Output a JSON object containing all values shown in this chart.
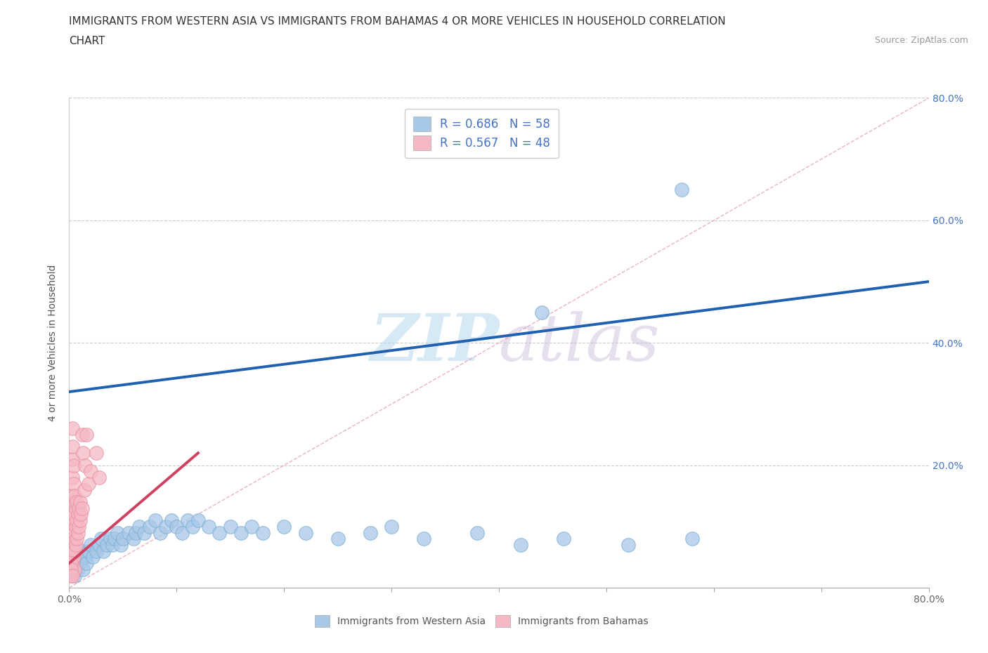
{
  "title_line1": "IMMIGRANTS FROM WESTERN ASIA VS IMMIGRANTS FROM BAHAMAS 4 OR MORE VEHICLES IN HOUSEHOLD CORRELATION",
  "title_line2": "CHART",
  "source": "Source: ZipAtlas.com",
  "ylabel": "4 or more Vehicles in Household",
  "xlim": [
    0.0,
    0.8
  ],
  "ylim": [
    0.0,
    0.8
  ],
  "xticks": [
    0.0,
    0.1,
    0.2,
    0.3,
    0.4,
    0.5,
    0.6,
    0.7,
    0.8
  ],
  "yticks": [
    0.0,
    0.2,
    0.4,
    0.6,
    0.8
  ],
  "xticklabels": [
    "0.0%",
    "",
    "",
    "",
    "",
    "",
    "",
    "",
    "80.0%"
  ],
  "yticklabels_right": [
    "",
    "20.0%",
    "40.0%",
    "60.0%",
    "80.0%"
  ],
  "blue_color": "#a8c8e8",
  "blue_edge_color": "#7aafd4",
  "pink_color": "#f5b8c4",
  "pink_edge_color": "#e890a0",
  "blue_line_color": "#2060b0",
  "pink_line_color": "#d04060",
  "diag_color": "#e0a0a8",
  "r_blue": 0.686,
  "n_blue": 58,
  "r_pink": 0.567,
  "n_pink": 48,
  "watermark": "ZIPatlas",
  "legend_label_blue": "Immigrants from Western Asia",
  "legend_label_pink": "Immigrants from Bahamas",
  "blue_line_x": [
    0.0,
    0.8
  ],
  "blue_line_y": [
    0.32,
    0.5
  ],
  "pink_line_x": [
    0.0,
    0.12
  ],
  "pink_line_y": [
    0.04,
    0.22
  ],
  "blue_scatter": [
    [
      0.005,
      0.03
    ],
    [
      0.005,
      0.02
    ],
    [
      0.007,
      0.04
    ],
    [
      0.008,
      0.03
    ],
    [
      0.01,
      0.05
    ],
    [
      0.01,
      0.04
    ],
    [
      0.012,
      0.06
    ],
    [
      0.013,
      0.03
    ],
    [
      0.015,
      0.05
    ],
    [
      0.016,
      0.04
    ],
    [
      0.018,
      0.06
    ],
    [
      0.02,
      0.07
    ],
    [
      0.022,
      0.05
    ],
    [
      0.025,
      0.06
    ],
    [
      0.028,
      0.07
    ],
    [
      0.03,
      0.08
    ],
    [
      0.032,
      0.06
    ],
    [
      0.035,
      0.07
    ],
    [
      0.038,
      0.08
    ],
    [
      0.04,
      0.07
    ],
    [
      0.042,
      0.08
    ],
    [
      0.045,
      0.09
    ],
    [
      0.048,
      0.07
    ],
    [
      0.05,
      0.08
    ],
    [
      0.055,
      0.09
    ],
    [
      0.06,
      0.08
    ],
    [
      0.062,
      0.09
    ],
    [
      0.065,
      0.1
    ],
    [
      0.07,
      0.09
    ],
    [
      0.075,
      0.1
    ],
    [
      0.08,
      0.11
    ],
    [
      0.085,
      0.09
    ],
    [
      0.09,
      0.1
    ],
    [
      0.095,
      0.11
    ],
    [
      0.1,
      0.1
    ],
    [
      0.105,
      0.09
    ],
    [
      0.11,
      0.11
    ],
    [
      0.115,
      0.1
    ],
    [
      0.12,
      0.11
    ],
    [
      0.13,
      0.1
    ],
    [
      0.14,
      0.09
    ],
    [
      0.15,
      0.1
    ],
    [
      0.16,
      0.09
    ],
    [
      0.17,
      0.1
    ],
    [
      0.18,
      0.09
    ],
    [
      0.2,
      0.1
    ],
    [
      0.22,
      0.09
    ],
    [
      0.25,
      0.08
    ],
    [
      0.28,
      0.09
    ],
    [
      0.3,
      0.1
    ],
    [
      0.33,
      0.08
    ],
    [
      0.38,
      0.09
    ],
    [
      0.42,
      0.07
    ],
    [
      0.46,
      0.08
    ],
    [
      0.52,
      0.07
    ],
    [
      0.58,
      0.08
    ],
    [
      0.57,
      0.65
    ],
    [
      0.44,
      0.45
    ]
  ],
  "pink_scatter": [
    [
      0.003,
      0.04
    ],
    [
      0.003,
      0.06
    ],
    [
      0.003,
      0.08
    ],
    [
      0.003,
      0.1
    ],
    [
      0.003,
      0.13
    ],
    [
      0.003,
      0.15
    ],
    [
      0.003,
      0.18
    ],
    [
      0.003,
      0.21
    ],
    [
      0.003,
      0.23
    ],
    [
      0.003,
      0.26
    ],
    [
      0.004,
      0.05
    ],
    [
      0.004,
      0.08
    ],
    [
      0.004,
      0.11
    ],
    [
      0.004,
      0.14
    ],
    [
      0.004,
      0.17
    ],
    [
      0.004,
      0.2
    ],
    [
      0.005,
      0.06
    ],
    [
      0.005,
      0.09
    ],
    [
      0.005,
      0.12
    ],
    [
      0.005,
      0.15
    ],
    [
      0.005,
      0.03
    ],
    [
      0.006,
      0.07
    ],
    [
      0.006,
      0.1
    ],
    [
      0.006,
      0.13
    ],
    [
      0.007,
      0.08
    ],
    [
      0.007,
      0.11
    ],
    [
      0.007,
      0.14
    ],
    [
      0.008,
      0.09
    ],
    [
      0.008,
      0.12
    ],
    [
      0.009,
      0.1
    ],
    [
      0.009,
      0.13
    ],
    [
      0.01,
      0.11
    ],
    [
      0.01,
      0.14
    ],
    [
      0.011,
      0.12
    ],
    [
      0.012,
      0.13
    ],
    [
      0.012,
      0.25
    ],
    [
      0.013,
      0.22
    ],
    [
      0.014,
      0.16
    ],
    [
      0.015,
      0.2
    ],
    [
      0.016,
      0.25
    ],
    [
      0.018,
      0.17
    ],
    [
      0.02,
      0.19
    ],
    [
      0.025,
      0.22
    ],
    [
      0.028,
      0.18
    ],
    [
      0.002,
      0.04
    ],
    [
      0.002,
      0.02
    ],
    [
      0.002,
      0.03
    ],
    [
      0.003,
      0.02
    ]
  ]
}
